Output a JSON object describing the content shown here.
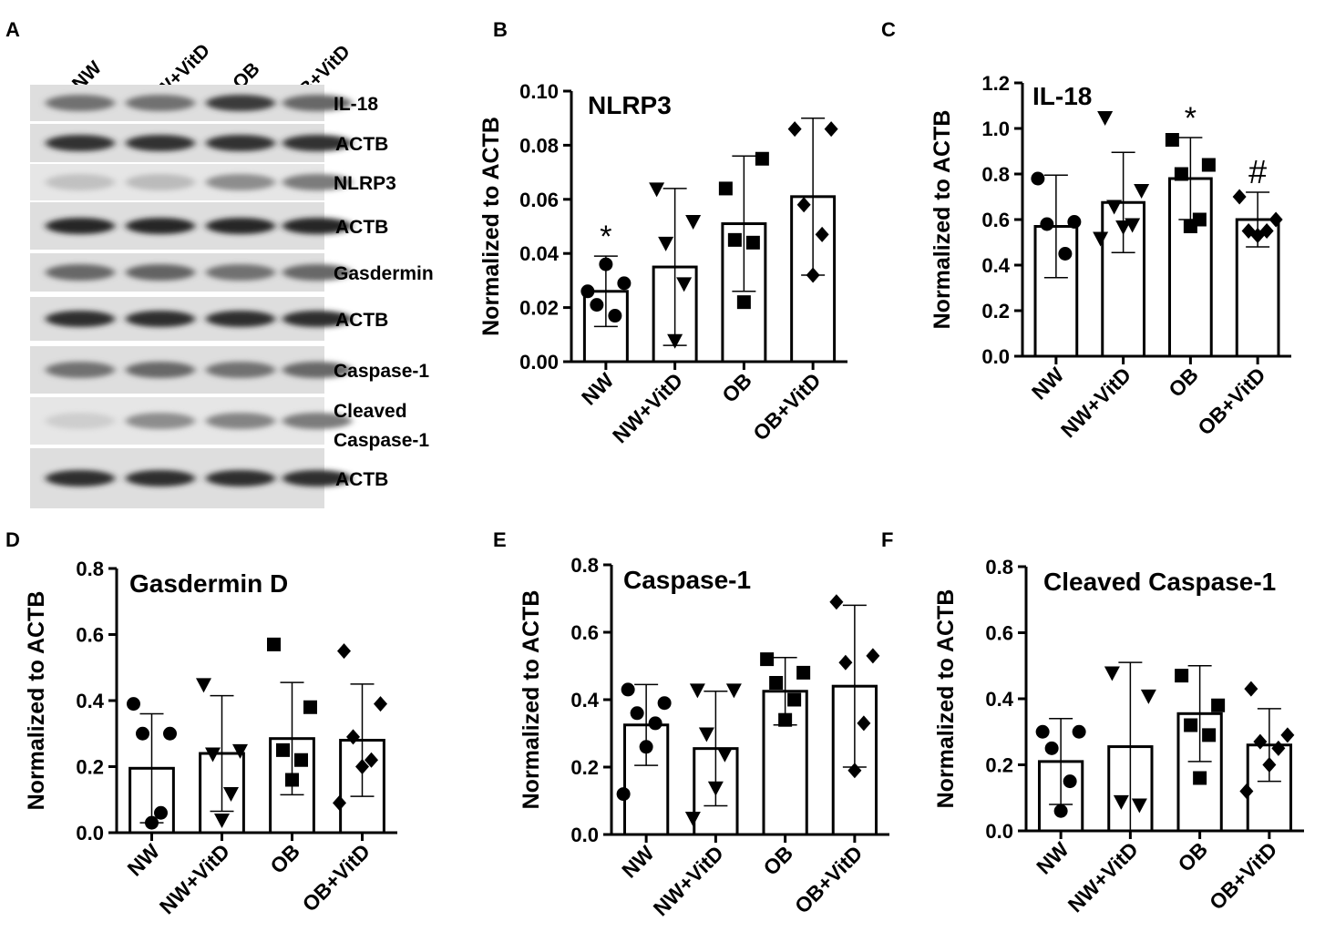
{
  "panel_letters": [
    "A",
    "B",
    "C",
    "D",
    "E",
    "F"
  ],
  "western_blot": {
    "lanes": [
      "NW",
      "NW+VitD",
      "OB",
      "OB+VitD"
    ],
    "rows": [
      {
        "label": "IL-18",
        "intensities": [
          0.55,
          0.55,
          0.85,
          0.6
        ]
      },
      {
        "label": "ACTB",
        "intensities": [
          0.9,
          0.9,
          0.9,
          0.9
        ]
      },
      {
        "label": "NLRP3",
        "intensities": [
          0.12,
          0.15,
          0.4,
          0.5
        ]
      },
      {
        "label": "ACTB",
        "intensities": [
          0.95,
          0.95,
          0.95,
          0.95
        ]
      },
      {
        "label": "Gasdermin",
        "intensities": [
          0.6,
          0.62,
          0.55,
          0.6
        ]
      },
      {
        "label": "ACTB",
        "intensities": [
          0.92,
          0.92,
          0.92,
          0.92
        ]
      },
      {
        "label": "Caspase-1",
        "intensities": [
          0.55,
          0.6,
          0.55,
          0.6
        ]
      },
      {
        "label": "Cleaved Caspase-1",
        "label_lines": [
          "Cleaved",
          "Caspase-1"
        ],
        "intensities": [
          0.05,
          0.4,
          0.45,
          0.5
        ]
      },
      {
        "label": "ACTB",
        "intensities": [
          0.92,
          0.92,
          0.92,
          0.92
        ]
      }
    ]
  },
  "chart_data": [
    {
      "panel": "B",
      "type": "bar",
      "title": "NLRP3",
      "ylabel": "Normalized to ACTB",
      "ylim": [
        0,
        0.1
      ],
      "yticks": [
        "0.00",
        "0.02",
        "0.04",
        "0.06",
        "0.08",
        "0.10"
      ],
      "categories": [
        "NW",
        "NW+VitD",
        "OB",
        "OB+VitD"
      ],
      "means": [
        0.026,
        0.035,
        0.051,
        0.061
      ],
      "sd": [
        0.013,
        0.029,
        0.025,
        0.029
      ],
      "points": [
        [
          0.026,
          0.029,
          0.021,
          0.017,
          0.036
        ],
        [
          0.064,
          0.052,
          0.044,
          0.029,
          0.008
        ],
        [
          0.064,
          0.075,
          0.045,
          0.044,
          0.022
        ],
        [
          0.086,
          0.086,
          0.058,
          0.047,
          0.032
        ]
      ],
      "annotations": [
        "*",
        "",
        "",
        ""
      ]
    },
    {
      "panel": "C",
      "type": "bar",
      "title": "IL-18",
      "ylabel": "Normalized to ACTB",
      "ylim": [
        0,
        1.2
      ],
      "yticks": [
        "0.0",
        "0.2",
        "0.4",
        "0.6",
        "0.8",
        "1.0",
        "1.2"
      ],
      "categories": [
        "NW",
        "NW+VitD",
        "OB",
        "OB+VitD"
      ],
      "means": [
        0.57,
        0.675,
        0.78,
        0.6
      ],
      "sd": [
        0.225,
        0.22,
        0.18,
        0.12
      ],
      "points": [
        [
          0.78,
          0.59,
          0.58,
          0.45
        ],
        [
          1.05,
          0.73,
          0.66,
          0.58,
          0.57,
          0.52
        ],
        [
          0.95,
          0.84,
          0.8,
          0.6,
          0.57
        ],
        [
          0.7,
          0.6,
          0.55,
          0.55,
          0.53
        ]
      ],
      "annotations": [
        "",
        "",
        "*",
        "#"
      ]
    },
    {
      "panel": "D",
      "type": "bar",
      "title": "Gasdermin D",
      "ylabel": "Normalized to ACTB",
      "ylim": [
        0,
        0.8
      ],
      "yticks": [
        "0.0",
        "0.2",
        "0.4",
        "0.6",
        "0.8"
      ],
      "categories": [
        "NW",
        "NW+VitD",
        "OB",
        "OB+VitD"
      ],
      "means": [
        0.195,
        0.24,
        0.285,
        0.28
      ],
      "sd": [
        0.165,
        0.175,
        0.17,
        0.17
      ],
      "points": [
        [
          0.39,
          0.3,
          0.3,
          0.06,
          0.03
        ],
        [
          0.45,
          0.25,
          0.24,
          0.12,
          0.04
        ],
        [
          0.57,
          0.38,
          0.25,
          0.22,
          0.16
        ],
        [
          0.55,
          0.39,
          0.29,
          0.22,
          0.2,
          0.09
        ]
      ],
      "annotations": [
        "",
        "",
        "",
        ""
      ]
    },
    {
      "panel": "E",
      "type": "bar",
      "title": "Caspase-1",
      "ylabel": "Normalized to ACTB",
      "ylim": [
        0,
        0.8
      ],
      "yticks": [
        "0.0",
        "0.2",
        "0.4",
        "0.6",
        "0.8"
      ],
      "categories": [
        "NW",
        "NW+VitD",
        "OB",
        "OB+VitD"
      ],
      "means": [
        0.325,
        0.255,
        0.425,
        0.44
      ],
      "sd": [
        0.12,
        0.17,
        0.1,
        0.24
      ],
      "points": [
        [
          0.43,
          0.39,
          0.36,
          0.33,
          0.26,
          0.12
        ],
        [
          0.43,
          0.43,
          0.3,
          0.24,
          0.14,
          0.05
        ],
        [
          0.52,
          0.48,
          0.45,
          0.4,
          0.34
        ],
        [
          0.69,
          0.53,
          0.51,
          0.33,
          0.19
        ]
      ],
      "annotations": [
        "",
        "",
        "",
        ""
      ]
    },
    {
      "panel": "F",
      "type": "bar",
      "title": "Cleaved Caspase-1",
      "ylabel": "Normalized to ACTB",
      "ylim": [
        0,
        0.8
      ],
      "yticks": [
        "0.0",
        "0.2",
        "0.4",
        "0.6",
        "0.8"
      ],
      "categories": [
        "NW",
        "NW+VitD",
        "OB",
        "OB+VitD"
      ],
      "means": [
        0.21,
        0.255,
        0.355,
        0.26
      ],
      "sd": [
        0.13,
        0.255,
        0.145,
        0.11
      ],
      "points": [
        [
          0.3,
          0.3,
          0.25,
          0.15,
          0.06
        ],
        [
          0.48,
          0.41,
          0.09,
          0.08
        ],
        [
          0.47,
          0.38,
          0.32,
          0.29,
          0.16
        ],
        [
          0.43,
          0.29,
          0.27,
          0.25,
          0.2,
          0.12
        ]
      ],
      "annotations": [
        "",
        "",
        "",
        ""
      ]
    }
  ]
}
